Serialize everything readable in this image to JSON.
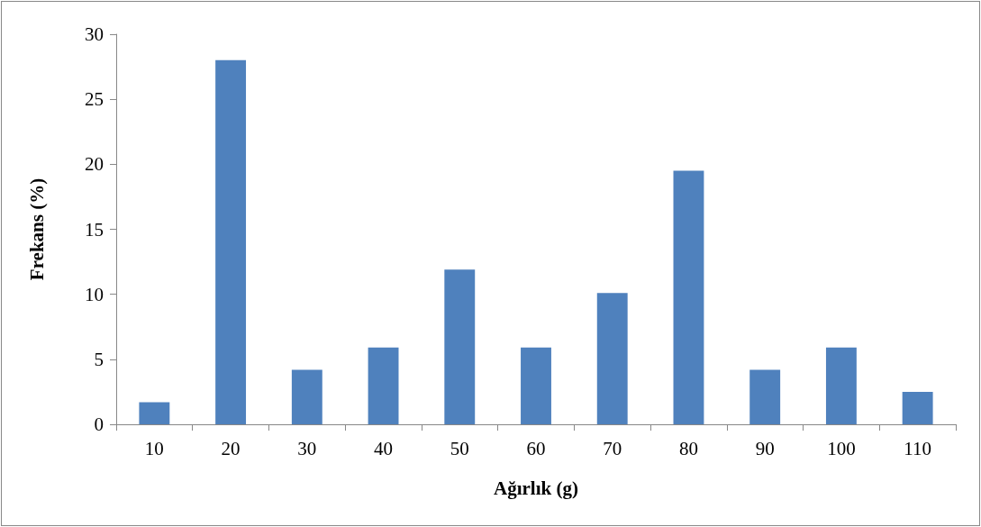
{
  "chart_data": {
    "type": "bar",
    "xlabel": "Ağırlık (g)",
    "ylabel": "Frekans (%)",
    "categories": [
      "10",
      "20",
      "30",
      "40",
      "50",
      "60",
      "70",
      "80",
      "90",
      "100",
      "110"
    ],
    "values": [
      1.7,
      28.0,
      4.2,
      5.9,
      11.9,
      5.9,
      10.1,
      19.5,
      4.2,
      5.9,
      2.5
    ],
    "color": "#4f81bd",
    "ylim": [
      0,
      30
    ],
    "yticks": [
      0,
      5,
      10,
      15,
      20,
      25,
      30
    ],
    "grid": false
  }
}
